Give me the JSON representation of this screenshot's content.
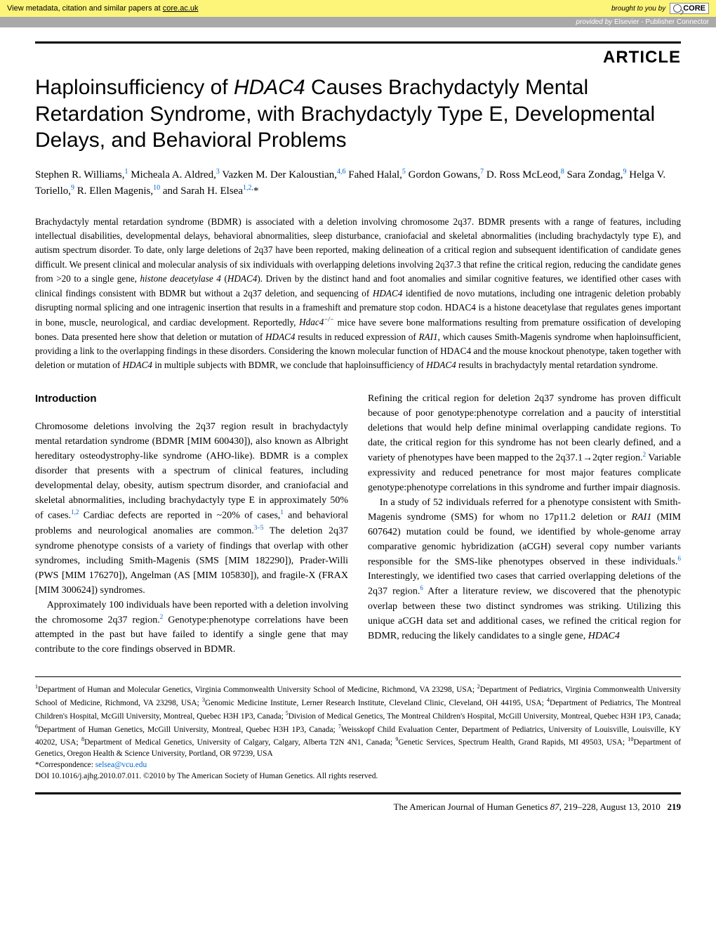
{
  "banner": {
    "left_prefix": "View metadata, citation and similar papers at ",
    "left_link": "core.ac.uk",
    "brought": "brought to you by",
    "logo_text": "CORE",
    "provided_prefix": "provided by ",
    "provided_publisher": "Elsevier - Publisher Connector"
  },
  "article_label": "ARTICLE",
  "title_lines": [
    "Haploinsufficiency of ",
    "HDAC4",
    " Causes Brachydactyly Mental Retardation Syndrome, with Brachydactyly Type E, Developmental Delays, and Behavioral Problems"
  ],
  "authors_html": "Stephen R. Williams,<sup>1</sup> Micheala A. Aldred,<sup>3</sup> Vazken M. Der Kaloustian,<sup>4,6</sup> Fahed Halal,<sup>5</sup> Gordon Gowans,<sup>7</sup> D. Ross McLeod,<sup>8</sup> Sara Zondag,<sup>9</sup> Helga V. Toriello,<sup>9</sup> R. Ellen Magenis,<sup>10</sup> and Sarah H. Elsea<sup>1,2,</sup><span class=\"star\">*</span>",
  "abstract": "Brachydactyly mental retardation syndrome (BDMR) is associated with a deletion involving chromosome 2q37. BDMR presents with a range of features, including intellectual disabilities, developmental delays, behavioral abnormalities, sleep disturbance, craniofacial and skeletal abnormalities (including brachydactyly type E), and autism spectrum disorder. To date, only large deletions of 2q37 have been reported, making delineation of a critical region and subsequent identification of candidate genes difficult. We present clinical and molecular analysis of six individuals with overlapping deletions involving 2q37.3 that refine the critical region, reducing the candidate genes from >20 to a single gene, <span class=\"italic\">histone deacetylase 4</span> (<span class=\"italic\">HDAC4</span>). Driven by the distinct hand and foot anomalies and similar cognitive features, we identified other cases with clinical findings consistent with BDMR but without a 2q37 deletion, and sequencing of <span class=\"italic\">HDAC4</span> identified de novo mutations, including one intragenic deletion probably disrupting normal splicing and one intragenic insertion that results in a frameshift and premature stop codon. HDAC4 is a histone deacetylase that regulates genes important in bone, muscle, neurological, and cardiac development. Reportedly, <span class=\"italic\">Hdac4<sup>−/−</sup></span> mice have severe bone malformations resulting from premature ossification of developing bones. Data presented here show that deletion or mutation of <span class=\"italic\">HDAC4</span> results in reduced expression of <span class=\"italic\">RAI1</span>, which causes Smith-Magenis syndrome when haploinsufficient, providing a link to the overlapping findings in these disorders. Considering the known molecular function of HDAC4 and the mouse knockout phenotype, taken together with deletion or mutation of <span class=\"italic\">HDAC4</span> in multiple subjects with BDMR, we conclude that haploinsufficiency of <span class=\"italic\">HDAC4</span> results in brachydactyly mental retardation syndrome.",
  "intro_heading": "Introduction",
  "col1_p1": "Chromosome deletions involving the 2q37 region result in brachydactyly mental retardation syndrome (BDMR [MIM 600430]), also known as Albright hereditary osteodystrophy-like syndrome (AHO-like). BDMR is a complex disorder that presents with a spectrum of clinical features, including developmental delay, obesity, autism spectrum disorder, and craniofacial and skeletal abnormalities, including brachydactyly type E in approximately 50% of cases.<sup>1,2</sup> Cardiac defects are reported in ~20% of cases,<sup>1</sup> and behavioral problems and neurological anomalies are common.<sup>3–5</sup> The deletion 2q37 syndrome phenotype consists of a variety of findings that overlap with other syndromes, including Smith-Magenis (SMS [MIM 182290]), Prader-Willi (PWS [MIM 176270]), Angelman (AS [MIM 105830]), and fragile-X (FRAX [MIM 300624]) syndromes.",
  "col1_p2": "Approximately 100 individuals have been reported with a deletion involving the chromosome 2q37 region.<sup>2</sup> Genotype:phenotype correlations have been attempted in the past but have failed to identify a single gene that may contribute to the core findings observed in BDMR.",
  "col2_p1": "Refining the critical region for deletion 2q37 syndrome has proven difficult because of poor genotype:phenotype correlation and a paucity of interstitial deletions that would help define minimal overlapping candidate regions. To date, the critical region for this syndrome has not been clearly defined, and a variety of phenotypes have been mapped to the 2q37.1→2qter region.<sup>2</sup> Variable expressivity and reduced penetrance for most major features complicate genotype:phenotype correlations in this syndrome and further impair diagnosis.",
  "col2_p2": "In a study of 52 individuals referred for a phenotype consistent with Smith-Magenis syndrome (SMS) for whom no 17p11.2 deletion or <span class=\"italic\">RAI1</span> (MIM 607642) mutation could be found, we identified by whole-genome array comparative genomic hybridization (aCGH) several copy number variants responsible for the SMS-like phenotypes observed in these individuals.<sup>6</sup> Interestingly, we identified two cases that carried overlapping deletions of the 2q37 region.<sup>6</sup> After a literature review, we discovered that the phenotypic overlap between these two distinct syndromes was striking. Utilizing this unique aCGH data set and additional cases, we refined the critical region for BDMR, reducing the likely candidates to a single gene, <span class=\"italic\">HDAC4</span>",
  "affiliations": "<sup>1</sup>Department of Human and Molecular Genetics, Virginia Commonwealth University School of Medicine, Richmond, VA 23298, USA; <sup>2</sup>Department of Pediatrics, Virginia Commonwealth University School of Medicine, Richmond, VA 23298, USA; <sup>3</sup>Genomic Medicine Institute, Lerner Research Institute, Cleveland Clinic, Cleveland, OH 44195, USA; <sup>4</sup>Department of Pediatrics, The Montreal Children's Hospital, McGill University, Montreal, Quebec H3H 1P3, Canada; <sup>5</sup>Division of Medical Genetics, The Montreal Children's Hospital, McGill University, Montreal, Quebec H3H 1P3, Canada; <sup>6</sup>Department of Human Genetics, McGill University, Montreal, Quebec H3H 1P3, Canada; <sup>7</sup>Weisskopf Child Evaluation Center, Department of Pediatrics, University of Louisville, Louisville, KY 40202, USA; <sup>8</sup>Department of Medical Genetics, University of Calgary, Calgary, Alberta T2N 4N1, Canada; <sup>9</sup>Genetic Services, Spectrum Health, Grand Rapids, MI 49503, USA; <sup>10</sup>Department of Genetics, Oregon Health & Science University, Portland, OR 97239, USA",
  "correspondence_label": "*Correspondence: ",
  "correspondence_email": "selsea@vcu.edu",
  "doi_line": "DOI 10.1016/j.ajhg.2010.07.011. ©2010 by The American Society of Human Genetics. All rights reserved.",
  "footer": {
    "journal": "The American Journal of Human Genetics",
    "volume_issue": "87",
    "pages": "219–228",
    "date": "August 13, 2010",
    "page_no": "219"
  },
  "colors": {
    "banner_bg": "#fdf47a",
    "provided_bg": "#a9a9a9",
    "link": "#0066cc",
    "rule": "#000000"
  }
}
